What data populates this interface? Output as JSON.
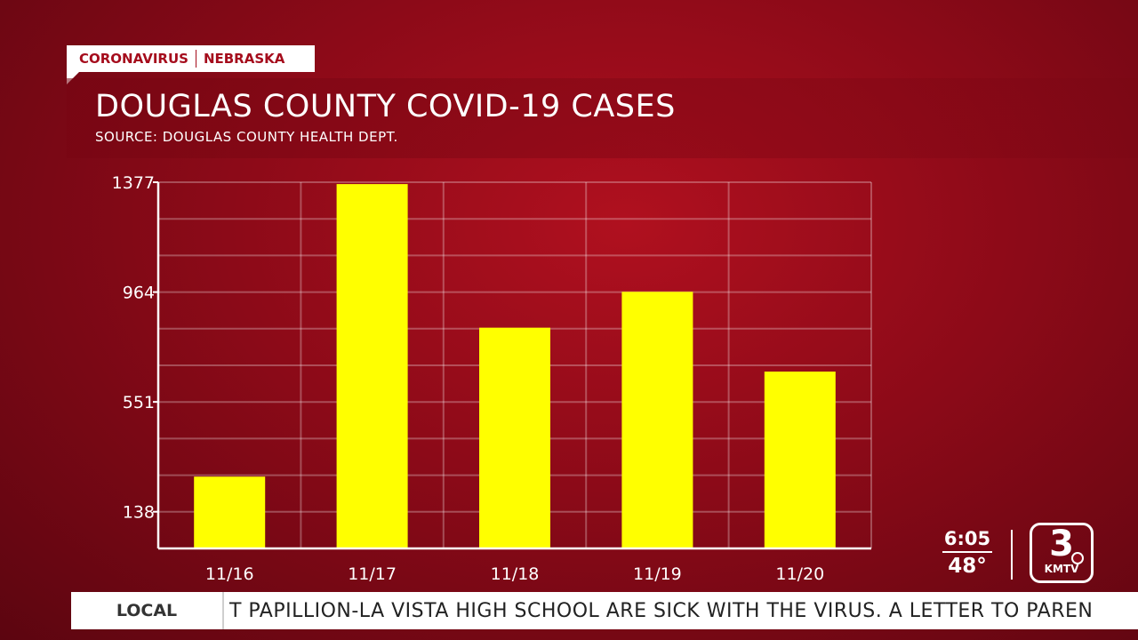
{
  "header": {
    "tag_left": "CORONAVIRUS",
    "tag_right": "NEBRASKA",
    "title": "DOUGLAS COUNTY COVID-19 CASES",
    "subtitle": "SOURCE: DOUGLAS COUNTY HEALTH DEPT."
  },
  "chart_data": {
    "type": "bar",
    "categories": [
      "11/16",
      "11/17",
      "11/18",
      "11/19",
      "11/20"
    ],
    "values": [
      270,
      1370,
      830,
      965,
      665
    ],
    "yticks": [
      138,
      551,
      964,
      1377
    ],
    "ylim": [
      0,
      1377
    ],
    "grid": true,
    "bar_color": "#ffff00",
    "title": "DOUGLAS COUNTY COVID-19 CASES",
    "xlabel": "",
    "ylabel": ""
  },
  "status": {
    "time": "6:05",
    "temperature": "48°"
  },
  "logo": {
    "number": "3",
    "callsign": "KMTV"
  },
  "ticker": {
    "label": "LOCAL",
    "text": "T PAPILLION-LA VISTA HIGH SCHOOL ARE SICK WITH THE VIRUS.  A LETTER TO PAREN"
  }
}
